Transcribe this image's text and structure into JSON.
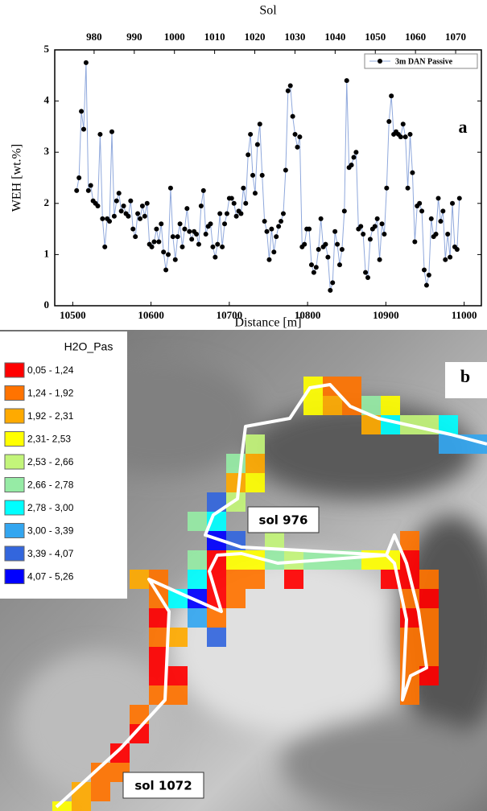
{
  "chart_data": {
    "type": "line",
    "panel_a_label": "a",
    "x2label": "Sol",
    "xlabel": "Distance [m]",
    "ylabel": "WEH [wt.%]",
    "xlim": [
      10477,
      11022
    ],
    "xticks": [
      10500,
      10600,
      10700,
      10800,
      10900,
      11000
    ],
    "x2lim": [
      970.2,
      1076.4
    ],
    "x2ticks": [
      980,
      990,
      1000,
      1010,
      1020,
      1030,
      1040,
      1050,
      1060,
      1070
    ],
    "ylim": [
      0,
      5
    ],
    "yticks": [
      0,
      1,
      2,
      3,
      4,
      5
    ],
    "legend_position": "upper right",
    "x": [
      10505,
      10508,
      10511,
      10514,
      10517,
      10520,
      10523,
      10526,
      10529,
      10532,
      10535,
      10538,
      10541,
      10544,
      10547,
      10550,
      10553,
      10556,
      10559,
      10562,
      10565,
      10568,
      10571,
      10574,
      10577,
      10580,
      10583,
      10586,
      10589,
      10592,
      10595,
      10598,
      10601,
      10604,
      10607,
      10610,
      10613,
      10616,
      10619,
      10622,
      10625,
      10628,
      10631,
      10634,
      10637,
      10640,
      10643,
      10646,
      10649,
      10652,
      10655,
      10658,
      10661,
      10664,
      10667,
      10670,
      10673,
      10676,
      10679,
      10682,
      10685,
      10688,
      10691,
      10694,
      10697,
      10700,
      10703,
      10706,
      10709,
      10712,
      10715,
      10718,
      10721,
      10724,
      10727,
      10730,
      10733,
      10736,
      10739,
      10742,
      10745,
      10748,
      10751,
      10754,
      10757,
      10760,
      10763,
      10766,
      10769,
      10772,
      10775,
      10778,
      10781,
      10784,
      10787,
      10790,
      10793,
      10796,
      10799,
      10802,
      10805,
      10808,
      10811,
      10814,
      10817,
      10820,
      10823,
      10826,
      10829,
      10832,
      10835,
      10838,
      10841,
      10844,
      10847,
      10850,
      10853,
      10856,
      10859,
      10862,
      10865,
      10868,
      10871,
      10874,
      10877,
      10880,
      10883,
      10886,
      10889,
      10892,
      10895,
      10898,
      10901,
      10904,
      10907,
      10910,
      10913,
      10916,
      10919,
      10922,
      10925,
      10928,
      10931,
      10934,
      10937,
      10940,
      10943,
      10946,
      10949,
      10952,
      10955,
      10958,
      10961,
      10964,
      10967,
      10970,
      10973,
      10976,
      10979,
      10982,
      10985,
      10988,
      10991,
      10994
    ],
    "series": [
      {
        "name": "3m DAN Passive",
        "color": "#8fa8dc",
        "marker_color": "#000000",
        "values": [
          2.25,
          2.5,
          3.8,
          3.45,
          4.75,
          2.25,
          2.35,
          2.05,
          2.0,
          1.95,
          3.35,
          1.7,
          1.15,
          1.7,
          1.65,
          3.4,
          1.75,
          2.05,
          2.2,
          1.85,
          1.95,
          1.8,
          1.75,
          2.05,
          1.5,
          1.35,
          1.8,
          1.7,
          1.95,
          1.75,
          2.0,
          1.2,
          1.15,
          1.25,
          1.5,
          1.25,
          1.6,
          1.05,
          0.7,
          1.0,
          2.3,
          1.35,
          0.9,
          1.35,
          1.6,
          1.15,
          1.5,
          1.9,
          1.45,
          1.3,
          1.45,
          1.4,
          1.2,
          1.95,
          2.25,
          1.4,
          1.55,
          1.6,
          1.15,
          0.95,
          1.2,
          1.8,
          1.15,
          1.6,
          1.8,
          2.1,
          2.1,
          2.0,
          1.75,
          1.85,
          1.8,
          2.3,
          2.0,
          2.95,
          3.35,
          2.55,
          2.2,
          3.15,
          3.55,
          2.55,
          1.65,
          1.45,
          0.9,
          1.5,
          1.05,
          1.35,
          1.55,
          1.65,
          1.8,
          2.65,
          4.2,
          4.3,
          3.7,
          3.35,
          3.1,
          3.3,
          1.15,
          1.2,
          1.5,
          1.5,
          0.8,
          0.65,
          0.75,
          1.1,
          1.7,
          1.15,
          1.2,
          0.95,
          0.3,
          0.45,
          1.45,
          1.2,
          0.8,
          1.1,
          1.85,
          4.4,
          2.7,
          2.75,
          2.9,
          3.0,
          1.5,
          1.55,
          1.4,
          0.65,
          0.55,
          1.3,
          1.5,
          1.55,
          1.7,
          0.9,
          1.6,
          1.4,
          2.3,
          3.6,
          4.1,
          3.35,
          3.4,
          3.35,
          3.3,
          3.55,
          3.3,
          2.3,
          3.35,
          2.6,
          1.25,
          1.95,
          2.0,
          1.85,
          0.7,
          0.4,
          0.6,
          1.7,
          1.35,
          1.4,
          2.1,
          1.65,
          1.85,
          0.9,
          1.4,
          0.95,
          2.0,
          1.15,
          1.1,
          2.1
        ]
      }
    ]
  },
  "map": {
    "panel_label": "b",
    "legend_title": "H2O_Pas",
    "legend": [
      {
        "label": "0,05 - 1,24",
        "color": "#ff0000"
      },
      {
        "label": "1,24 - 1,92",
        "color": "#ff7300"
      },
      {
        "label": "1,92 - 2,31",
        "color": "#ffaa00"
      },
      {
        "label": "2,31- 2,53",
        "color": "#ffff00"
      },
      {
        "label": "2,53 - 2,66",
        "color": "#c3f57a"
      },
      {
        "label": "2,66 - 2,78",
        "color": "#96eba5"
      },
      {
        "label": "2,78 - 3,00",
        "color": "#00ffff"
      },
      {
        "label": "3,00 - 3,39",
        "color": "#33a6f0"
      },
      {
        "label": "3,39 - 4,07",
        "color": "#3366dd"
      },
      {
        "label": "4,07 - 5,26",
        "color": "#0000ff"
      }
    ],
    "labels": [
      "sol 976",
      "sol 1072"
    ]
  }
}
